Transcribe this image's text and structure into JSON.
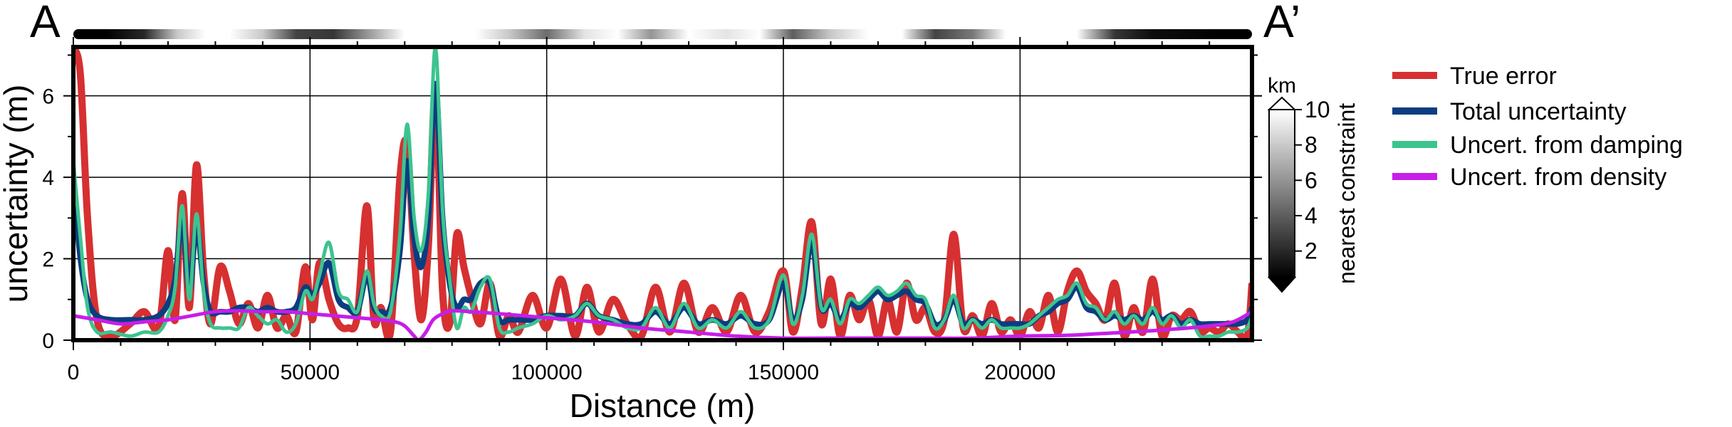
{
  "chart_data": {
    "type": "line",
    "title": "",
    "profile": {
      "start_label": "A",
      "end_label": "A’"
    },
    "xlabel": "Distance (m)",
    "ylabel": "uncertainty (m)",
    "xlim": [
      0,
      249000
    ],
    "ylim": [
      0,
      7.2
    ],
    "xticks": [
      0,
      50000,
      100000,
      150000,
      200000
    ],
    "xtick_labels": [
      "0",
      "50000",
      "100000",
      "150000",
      "200000"
    ],
    "yticks": [
      0,
      2,
      4,
      6
    ],
    "ytick_labels": [
      "0",
      "2",
      "4",
      "6"
    ],
    "grid": true,
    "legend_position": "outside-right",
    "colorbar": {
      "label": "nearest constraint",
      "unit": "km",
      "ticks": [
        "2",
        "4",
        "6",
        "8",
        "10"
      ],
      "tick_values": [
        2,
        4,
        6,
        8,
        10
      ],
      "range": [
        0.5,
        10
      ],
      "colormap": "grayscale"
    },
    "series": [
      {
        "name": "True error",
        "color": "#d63031",
        "x": [
          0,
          1500,
          3000,
          5000,
          8000,
          12000,
          15000,
          18000,
          20000,
          21500,
          23000,
          24500,
          26000,
          27500,
          29000,
          31000,
          33000,
          35000,
          37000,
          39000,
          41000,
          43000,
          45000,
          47000,
          49000,
          50500,
          52000,
          54000,
          56000,
          58000,
          60000,
          62000,
          63500,
          65000,
          67000,
          69000,
          70500,
          72000,
          73500,
          75000,
          76500,
          78000,
          79500,
          81000,
          82500,
          84000,
          86000,
          88000,
          90000,
          92000,
          94000,
          97000,
          100000,
          103000,
          106000,
          108500,
          111000,
          114000,
          117000,
          120000,
          123000,
          126000,
          129000,
          132000,
          135000,
          138000,
          141000,
          144000,
          147000,
          150000,
          152000,
          154000,
          156000,
          158000,
          160000,
          162000,
          164000,
          166000,
          168000,
          170000,
          172000,
          174000,
          176000,
          178000,
          180000,
          182000,
          184000,
          186000,
          188000,
          190000,
          192000,
          194000,
          196000,
          198000,
          200000,
          202000,
          204000,
          206000,
          208000,
          210000,
          212000,
          214000,
          216000,
          218000,
          220000,
          222000,
          224000,
          226000,
          228000,
          230000,
          232000,
          234000,
          236000,
          238000,
          240000,
          242000,
          244000,
          246000,
          248000,
          249000
        ],
        "y": [
          7.2,
          6.5,
          3.0,
          0.5,
          0.1,
          0.4,
          0.7,
          0.3,
          2.2,
          0.5,
          3.6,
          0.8,
          4.3,
          1.7,
          0.4,
          1.8,
          1.2,
          0.4,
          0.9,
          0.3,
          1.1,
          0.3,
          0.6,
          0.2,
          1.8,
          0.5,
          1.9,
          1.0,
          0.4,
          0.3,
          0.6,
          3.3,
          0.5,
          0.8,
          0.2,
          4.0,
          4.8,
          2.1,
          0.5,
          2.3,
          6.1,
          1.2,
          0.4,
          2.6,
          1.8,
          1.1,
          0.4,
          1.4,
          0.1,
          0.6,
          0.2,
          1.1,
          0.3,
          1.5,
          0.1,
          1.3,
          0.2,
          1.0,
          0.4,
          0.1,
          1.3,
          0.2,
          1.4,
          0.2,
          0.8,
          0.2,
          1.1,
          0.2,
          0.7,
          1.7,
          0.2,
          1.3,
          2.9,
          0.4,
          1.5,
          0.1,
          1.1,
          0.5,
          1.0,
          0.1,
          1.0,
          0.2,
          1.4,
          0.5,
          0.8,
          0.2,
          0.5,
          2.6,
          0.3,
          0.6,
          0.1,
          0.9,
          0.2,
          0.5,
          0.1,
          0.7,
          0.3,
          1.1,
          0.2,
          1.2,
          1.7,
          1.2,
          0.9,
          0.5,
          1.4,
          0.1,
          0.8,
          0.2,
          1.5,
          0.1,
          0.6,
          0.5,
          0.7,
          0.2,
          0.3,
          0.2,
          0.4,
          0.2,
          0.1,
          1.4
        ]
      },
      {
        "name": "Total uncertainty",
        "color": "#0b3d80",
        "x": [
          0,
          1500,
          3000,
          5000,
          8000,
          12000,
          15000,
          18000,
          20000,
          21500,
          23000,
          24500,
          26000,
          27500,
          29000,
          31000,
          33000,
          35000,
          37000,
          39000,
          41000,
          43000,
          45000,
          47000,
          49000,
          50500,
          52000,
          54000,
          56000,
          58000,
          60000,
          62000,
          63500,
          65000,
          67000,
          69000,
          70500,
          72000,
          73500,
          75000,
          76500,
          78000,
          79500,
          81000,
          82500,
          84000,
          86000,
          88000,
          90000,
          92000,
          94000,
          97000,
          100000,
          103000,
          106000,
          108500,
          111000,
          114000,
          117000,
          120000,
          123000,
          126000,
          129000,
          132000,
          135000,
          138000,
          141000,
          144000,
          147000,
          150000,
          152000,
          154000,
          156000,
          158000,
          160000,
          162000,
          164000,
          166000,
          168000,
          170000,
          172000,
          174000,
          176000,
          178000,
          180000,
          182000,
          184000,
          186000,
          188000,
          190000,
          192000,
          194000,
          196000,
          198000,
          200000,
          202000,
          204000,
          206000,
          208000,
          210000,
          212000,
          214000,
          216000,
          218000,
          220000,
          222000,
          224000,
          226000,
          228000,
          230000,
          232000,
          234000,
          236000,
          238000,
          240000,
          242000,
          244000,
          246000,
          248000,
          249000
        ],
        "y": [
          3.8,
          2.0,
          1.0,
          0.6,
          0.5,
          0.5,
          0.5,
          0.6,
          0.9,
          1.5,
          3.0,
          1.2,
          2.8,
          1.4,
          0.7,
          0.7,
          0.7,
          0.8,
          0.8,
          0.7,
          0.8,
          0.7,
          0.7,
          0.8,
          1.3,
          1.1,
          1.4,
          1.9,
          1.0,
          0.8,
          0.7,
          1.6,
          0.8,
          0.7,
          0.8,
          2.2,
          4.4,
          2.5,
          1.8,
          3.0,
          6.3,
          3.0,
          1.4,
          0.8,
          1.0,
          1.0,
          1.4,
          1.4,
          0.5,
          0.5,
          0.5,
          0.5,
          0.6,
          0.6,
          0.6,
          0.9,
          0.6,
          0.5,
          0.4,
          0.4,
          0.7,
          0.4,
          0.8,
          0.4,
          0.5,
          0.4,
          0.6,
          0.4,
          0.5,
          1.4,
          0.5,
          1.0,
          2.4,
          0.8,
          0.9,
          0.5,
          0.9,
          0.8,
          1.0,
          1.2,
          1.0,
          1.1,
          1.2,
          1.0,
          0.9,
          0.4,
          0.5,
          1.0,
          0.4,
          0.5,
          0.4,
          0.5,
          0.4,
          0.4,
          0.4,
          0.4,
          0.6,
          0.7,
          0.9,
          1.0,
          1.3,
          0.8,
          0.7,
          0.5,
          0.6,
          0.5,
          0.6,
          0.5,
          0.7,
          0.5,
          0.6,
          0.4,
          0.5,
          0.4,
          0.4,
          0.4,
          0.4,
          0.4,
          0.5,
          0.8
        ]
      },
      {
        "name": "Uncert. from damping",
        "color": "#3cc48f",
        "x": [
          0,
          1500,
          3000,
          5000,
          8000,
          12000,
          15000,
          18000,
          20000,
          21500,
          23000,
          24500,
          26000,
          27500,
          29000,
          31000,
          33000,
          35000,
          37000,
          39000,
          41000,
          43000,
          45000,
          47000,
          49000,
          50500,
          52000,
          54000,
          56000,
          58000,
          60000,
          62000,
          63500,
          65000,
          67000,
          69000,
          70500,
          72000,
          73500,
          75000,
          76500,
          78000,
          79500,
          81000,
          82500,
          84000,
          86000,
          88000,
          90000,
          92000,
          94000,
          97000,
          100000,
          103000,
          106000,
          108500,
          111000,
          114000,
          117000,
          120000,
          123000,
          126000,
          129000,
          132000,
          135000,
          138000,
          141000,
          144000,
          147000,
          150000,
          152000,
          154000,
          156000,
          158000,
          160000,
          162000,
          164000,
          166000,
          168000,
          170000,
          172000,
          174000,
          176000,
          178000,
          180000,
          182000,
          184000,
          186000,
          188000,
          190000,
          192000,
          194000,
          196000,
          198000,
          200000,
          202000,
          204000,
          206000,
          208000,
          210000,
          212000,
          214000,
          216000,
          218000,
          220000,
          222000,
          224000,
          226000,
          228000,
          230000,
          232000,
          234000,
          236000,
          238000,
          240000,
          242000,
          244000,
          246000,
          248000,
          249000
        ],
        "y": [
          4.4,
          2.5,
          0.8,
          0.2,
          0.2,
          0.1,
          0.2,
          0.2,
          0.6,
          1.3,
          3.3,
          1.0,
          3.1,
          1.2,
          0.4,
          0.3,
          0.3,
          0.3,
          0.8,
          0.6,
          0.4,
          0.5,
          0.2,
          0.4,
          1.2,
          1.0,
          1.6,
          2.4,
          1.2,
          1.0,
          0.7,
          1.7,
          0.9,
          0.6,
          0.7,
          2.6,
          5.3,
          3.0,
          2.2,
          3.6,
          7.2,
          3.2,
          1.5,
          0.3,
          0.8,
          0.7,
          1.3,
          1.5,
          0.3,
          0.2,
          0.3,
          0.4,
          0.6,
          0.5,
          0.6,
          0.9,
          0.6,
          0.5,
          0.3,
          0.3,
          0.8,
          0.3,
          0.9,
          0.3,
          0.5,
          0.3,
          0.7,
          0.3,
          0.5,
          1.6,
          0.4,
          1.1,
          2.6,
          0.8,
          1.0,
          0.4,
          1.0,
          0.9,
          1.1,
          1.3,
          1.1,
          1.2,
          1.4,
          1.1,
          1.0,
          0.3,
          0.5,
          1.1,
          0.3,
          0.5,
          0.3,
          0.5,
          0.3,
          0.3,
          0.3,
          0.4,
          0.6,
          0.8,
          1.0,
          1.1,
          1.4,
          0.9,
          0.8,
          0.5,
          0.7,
          0.4,
          0.6,
          0.4,
          0.8,
          0.4,
          0.6,
          0.3,
          0.5,
          0.1,
          0.1,
          0.1,
          0.2,
          0.2,
          0.3,
          0.6
        ]
      },
      {
        "name": "Uncert. from density",
        "color": "#c71ee8",
        "x": [
          0,
          5000,
          10000,
          15000,
          20000,
          25000,
          30000,
          35000,
          40000,
          45000,
          50000,
          55000,
          60000,
          65000,
          68000,
          70000,
          72000,
          73000,
          74500,
          76000,
          78000,
          80000,
          84000,
          90000,
          100000,
          110000,
          120000,
          130000,
          140000,
          150000,
          160000,
          170000,
          180000,
          190000,
          200000,
          210000,
          220000,
          230000,
          240000,
          245000,
          249000
        ],
        "y": [
          0.6,
          0.5,
          0.4,
          0.45,
          0.5,
          0.6,
          0.7,
          0.72,
          0.7,
          0.7,
          0.65,
          0.6,
          0.55,
          0.5,
          0.45,
          0.35,
          0.1,
          0.0,
          0.2,
          0.5,
          0.65,
          0.72,
          0.7,
          0.65,
          0.55,
          0.45,
          0.3,
          0.2,
          0.1,
          0.05,
          0.05,
          0.05,
          0.05,
          0.05,
          0.1,
          0.12,
          0.18,
          0.25,
          0.35,
          0.45,
          0.7
        ]
      }
    ],
    "constraint_distance_bar": {
      "x": [
        0,
        7000,
        15000,
        22000,
        28000,
        33000,
        40000,
        47000,
        55000,
        62000,
        70000,
        78000,
        85000,
        92000,
        100000,
        108000,
        115000,
        122000,
        130000,
        138000,
        145000,
        152000,
        160000,
        168000,
        175000,
        182000,
        190000,
        197000,
        205000,
        212000,
        220000,
        228000,
        235000,
        242000,
        249000
      ],
      "km": [
        0.3,
        0.5,
        2.0,
        8.0,
        10.0,
        10.0,
        8.0,
        3.0,
        2.5,
        6.0,
        10.0,
        10.0,
        10.0,
        8.0,
        4.5,
        9.0,
        10.0,
        6.0,
        10.0,
        9.0,
        10.0,
        4.0,
        8.0,
        10.0,
        10.0,
        3.0,
        5.0,
        10.0,
        10.0,
        10.0,
        2.5,
        1.0,
        0.8,
        0.4,
        0.3
      ]
    }
  }
}
